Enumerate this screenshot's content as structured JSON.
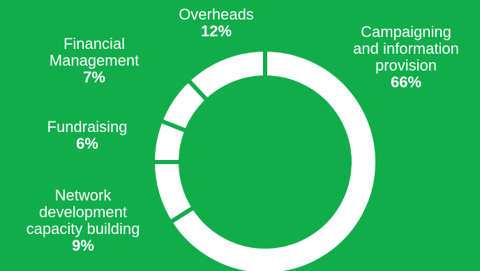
{
  "colors": {
    "background": "#12ad4b",
    "slice": "#ffffff"
  },
  "chart_data": {
    "type": "pie",
    "donut": true,
    "title": "",
    "slices": [
      {
        "label": "Campaigning\nand information\nprovision",
        "value": 66,
        "value_label": "66%"
      },
      {
        "label": "Network\ndevelopment\ncapacity building",
        "value": 9,
        "value_label": "9%"
      },
      {
        "label": "Fundraising",
        "value": 6,
        "value_label": "6%"
      },
      {
        "label": "Financial\nManagement",
        "value": 7,
        "value_label": "7%"
      },
      {
        "label": "Overheads",
        "value": 12,
        "value_label": "12%"
      }
    ]
  }
}
